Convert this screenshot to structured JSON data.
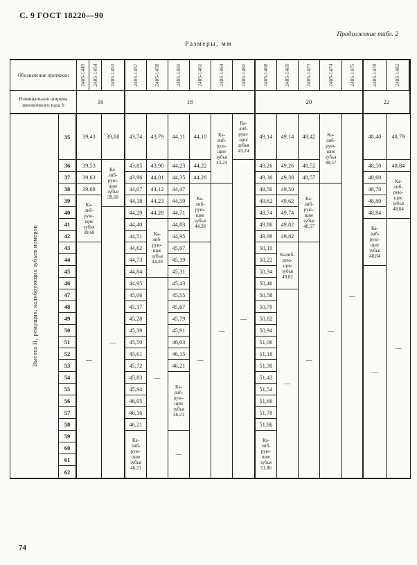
{
  "page": {
    "title": "С. 9 ГОСТ 18220—90",
    "continuation": "Продолжение табл. 2",
    "size_caption": "Размеры, мм",
    "page_number": "74"
  },
  "colors": {
    "paper": "#fbfaf6",
    "ink": "#1f1f1f"
  },
  "table": {
    "header": {
      "designation_label": "Обозначение протяжки",
      "width_label": "Номинальная ширина шпоночного паза",
      "width_symbol": "b",
      "groups": [
        {
          "width_value": "16",
          "designations": [
            "2405-1449",
            "2405-1454",
            "2405-1453"
          ]
        },
        {
          "width_value": "18",
          "designations": [
            "2405-1457",
            "2405-1458",
            "2405-1459",
            "2405-1461",
            "2405-1464",
            "2405-1465"
          ]
        },
        {
          "width_value": "20",
          "designations": [
            "2405-1468",
            "2405-1469",
            "2405-1473",
            "2405-1474",
            "2405-1475"
          ]
        },
        {
          "width_value": "22",
          "designations": [
            "2405-1478",
            "2405-1482"
          ]
        }
      ]
    },
    "left_axis_label": "Высота Н₁ режущих, калибрующих зубьев номеров",
    "rows": {
      "first": 35,
      "last": 62
    },
    "cal_lines_default": [
      "Ка-",
      "либ-",
      "рую-",
      "щие",
      "зубья"
    ],
    "dash": "—",
    "columns": [
      {
        "id": "2405-1449/2405-1454",
        "segments": [
          {
            "type": "values",
            "start": 35,
            "values": [
              "39,43",
              "39,53",
              "39,63",
              "39,68"
            ]
          },
          {
            "type": "cal",
            "start": 39,
            "end": 42,
            "value": "39,68"
          },
          {
            "type": "dash",
            "start": 43,
            "end": 62
          }
        ]
      },
      {
        "id": "2405-1453",
        "segments": [
          {
            "type": "values",
            "start": 35,
            "values": [
              "39,68"
            ]
          },
          {
            "type": "cal",
            "start": 36,
            "end": 39,
            "value": "39,68"
          },
          {
            "type": "dash",
            "start": 40,
            "end": 62
          }
        ]
      },
      {
        "id": "2405-1457",
        "segments": [
          {
            "type": "values",
            "start": 35,
            "values": [
              "43,74",
              "43,85",
              "43,96",
              "44,07",
              "44,18",
              "44,29",
              "44,40",
              "44,51",
              "44,62",
              "44,73",
              "44,84",
              "44,95",
              "45,06",
              "45,17",
              "45,28",
              "45,39",
              "45,50",
              "45,61",
              "45,72",
              "45,83",
              "45,94",
              "46,05",
              "46,16",
              "46,21"
            ]
          },
          {
            "type": "cal",
            "start": 59,
            "end": 62,
            "value": "46,21"
          }
        ]
      },
      {
        "id": "2405-1458",
        "segments": [
          {
            "type": "values",
            "start": 35,
            "values": [
              "43,79",
              "43,90",
              "44,01",
              "44,12",
              "44,23",
              "44,28"
            ]
          },
          {
            "type": "cal",
            "start": 41,
            "end": 45,
            "value": "44,28"
          },
          {
            "type": "dash",
            "start": 46,
            "end": 62
          }
        ]
      },
      {
        "id": "2405-1459",
        "segments": [
          {
            "type": "values",
            "start": 35,
            "values": [
              "44,11",
              "44,23",
              "44,35",
              "44,47",
              "44,59",
              "44,71",
              "44,83",
              "44,95",
              "45,07",
              "45,19",
              "45,31",
              "45,43",
              "45,55",
              "45,67",
              "45,79",
              "45,91",
              "46,03",
              "46,15",
              "46,21"
            ]
          },
          {
            "type": "cal",
            "start": 54,
            "end": 58,
            "value": "46,21"
          },
          {
            "type": "dash",
            "start": 59,
            "end": 62
          }
        ]
      },
      {
        "id": "2405-1461",
        "segments": [
          {
            "type": "values",
            "start": 35,
            "values": [
              "44,10",
              "44,22",
              "44,28"
            ]
          },
          {
            "type": "cal",
            "start": 38,
            "end": 42,
            "value": "44,28"
          },
          {
            "type": "dash",
            "start": 43,
            "end": 62
          }
        ]
      },
      {
        "id": "2405-1464",
        "segments": [
          {
            "type": "cal",
            "start": 35,
            "end": 37,
            "value": "43,24"
          },
          {
            "type": "dash",
            "start": 38,
            "end": 62
          }
        ]
      },
      {
        "id": "2405-1465",
        "segments": [
          {
            "type": "cal",
            "start": 35,
            "end": 35,
            "value": "43,24"
          },
          {
            "type": "dash",
            "start": 36,
            "end": 62
          }
        ]
      },
      {
        "id": "2405-1468",
        "segments": [
          {
            "type": "values",
            "start": 35,
            "values": [
              "49,14",
              "49,26",
              "49,38",
              "49,50",
              "49,62",
              "49,74",
              "49,86",
              "49,98",
              "50,10",
              "50,22",
              "50,34",
              "50,46",
              "50,58",
              "50,70",
              "50,82",
              "50,94",
              "51,06",
              "51,18",
              "51,30",
              "51,42",
              "51,54",
              "51,66",
              "51,78",
              "51,86"
            ]
          },
          {
            "type": "cal",
            "start": 59,
            "end": 62,
            "value": "51,86"
          }
        ]
      },
      {
        "id": "2405-1469",
        "segments": [
          {
            "type": "values",
            "start": 35,
            "values": [
              "49,14",
              "49,26",
              "49,38",
              "49,50",
              "49,62",
              "49,74",
              "49,82",
              "49,82"
            ]
          },
          {
            "type": "cal",
            "start": 43,
            "end": 46,
            "value": "49,82",
            "lines": [
              "Калиб-",
              "рую-",
              "щие",
              "зубья"
            ]
          },
          {
            "type": "dash",
            "start": 47,
            "end": 62
          }
        ]
      },
      {
        "id": "2405-1473",
        "segments": [
          {
            "type": "values",
            "start": 35,
            "values": [
              "48,42",
              "48,52",
              "48,57"
            ]
          },
          {
            "type": "cal",
            "start": 38,
            "end": 42,
            "value": "48,57"
          },
          {
            "type": "dash",
            "start": 43,
            "end": 62
          }
        ]
      },
      {
        "id": "2405-1474",
        "segments": [
          {
            "type": "cal",
            "start": 35,
            "end": 37,
            "value": "48,57"
          },
          {
            "type": "dash",
            "start": 38,
            "end": 62
          }
        ]
      },
      {
        "id": "2405-1475",
        "segments": [
          {
            "type": "dash",
            "start": 35,
            "end": 62
          }
        ]
      },
      {
        "id": "2405-1478",
        "segments": [
          {
            "type": "values",
            "start": 35,
            "values": [
              "48,40",
              "48,50",
              "48,60",
              "48,70",
              "48,80",
              "48,84"
            ]
          },
          {
            "type": "cal",
            "start": 41,
            "end": 44,
            "value": "48,84"
          },
          {
            "type": "dash",
            "start": 45,
            "end": 62
          }
        ]
      },
      {
        "id": "2405-1482",
        "segments": [
          {
            "type": "values",
            "start": 35,
            "values": [
              "48,79",
              "48,84"
            ]
          },
          {
            "type": "cal",
            "start": 37,
            "end": 40,
            "value": "48,84"
          },
          {
            "type": "dash",
            "start": 41,
            "end": 62
          }
        ]
      }
    ]
  }
}
